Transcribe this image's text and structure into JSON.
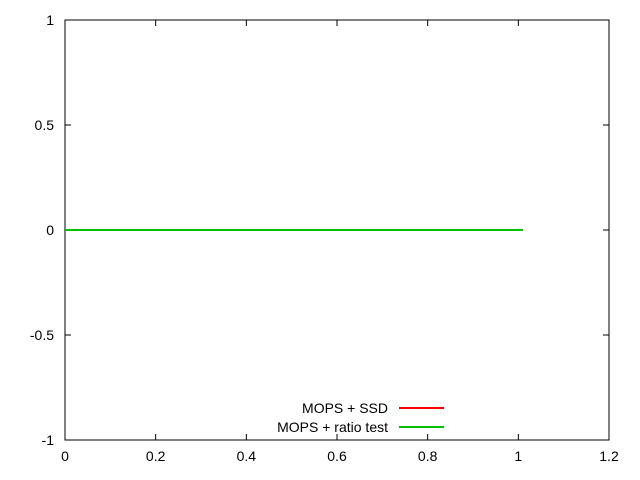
{
  "chart_data": {
    "type": "line",
    "title": "",
    "xlabel": "",
    "ylabel": "",
    "xlim": [
      0,
      1.2
    ],
    "ylim": [
      -1,
      1
    ],
    "x_ticks": [
      "0",
      "0.2",
      "0.4",
      "0.6",
      "0.8",
      "1",
      "1.2"
    ],
    "y_ticks": [
      "-1",
      "-0.5",
      "0",
      "0.5",
      "1"
    ],
    "grid": false,
    "legend_position": "bottom-center",
    "series": [
      {
        "name": "MOPS + SSD",
        "color": "#ff0000",
        "x": [
          0,
          1.01
        ],
        "y": [
          0,
          0
        ]
      },
      {
        "name": "MOPS + ratio test",
        "color": "#00c000",
        "x": [
          0,
          1.01
        ],
        "y": [
          0,
          0
        ]
      }
    ]
  }
}
